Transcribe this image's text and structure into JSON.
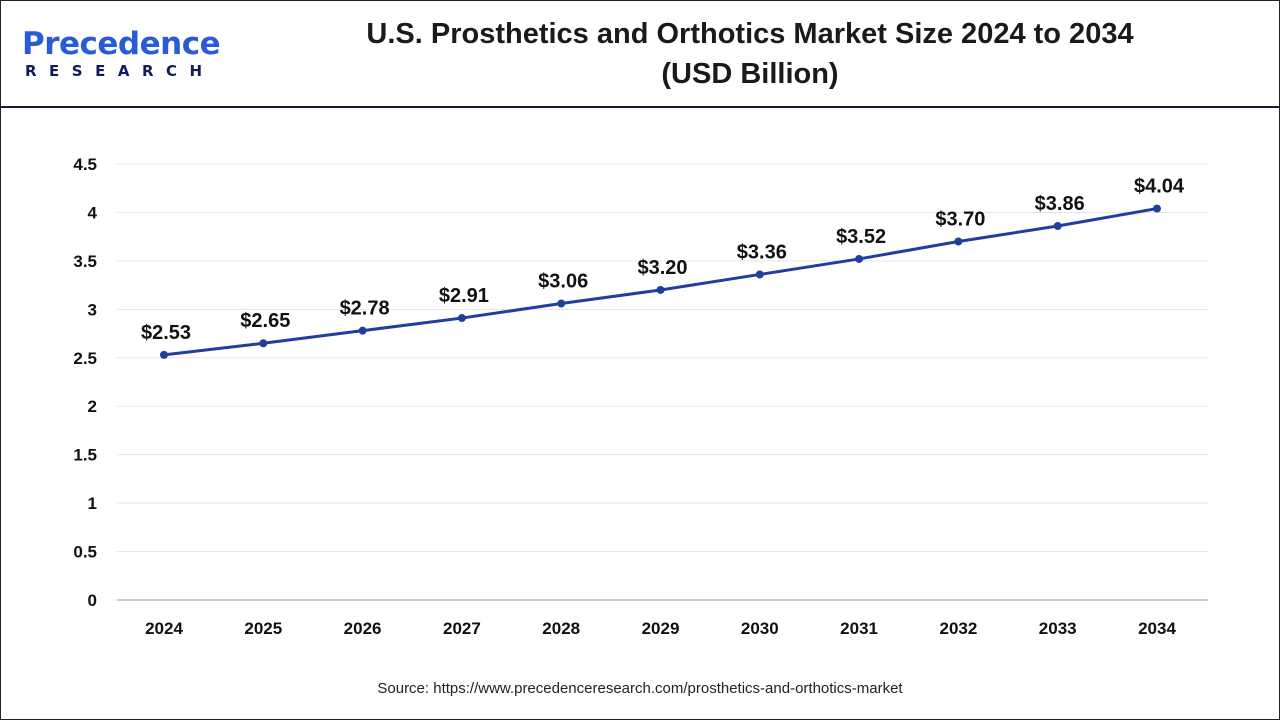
{
  "brand": {
    "name": "Precedence",
    "sub": "RESEARCH"
  },
  "header": {
    "title_line1": "U.S. Prosthetics and Orthotics Market Size 2024 to 2034",
    "title_line2": "(USD Billion)"
  },
  "source": "Source: https://www.precedenceresearch.com/prosthetics-and-orthotics-market",
  "chart_data": {
    "type": "line",
    "title": "U.S. Prosthetics and Orthotics Market Size 2024 to 2034 (USD Billion)",
    "categories": [
      "2024",
      "2025",
      "2026",
      "2027",
      "2028",
      "2029",
      "2030",
      "2031",
      "2032",
      "2033",
      "2034"
    ],
    "values": [
      2.53,
      2.65,
      2.78,
      2.91,
      3.06,
      3.2,
      3.36,
      3.52,
      3.7,
      3.86,
      4.04
    ],
    "data_labels": [
      "$2.53",
      "$2.65",
      "$2.78",
      "$2.91",
      "$3.06",
      "$3.20",
      "$3.36",
      "$3.52",
      "$3.70",
      "$3.86",
      "$4.04"
    ],
    "ylim": [
      0,
      4.5
    ],
    "yticks": [
      "0",
      "0.5",
      "1",
      "1.5",
      "2",
      "2.5",
      "3",
      "3.5",
      "4",
      "4.5"
    ],
    "grid": true,
    "line_color": "#1f3f9f"
  }
}
